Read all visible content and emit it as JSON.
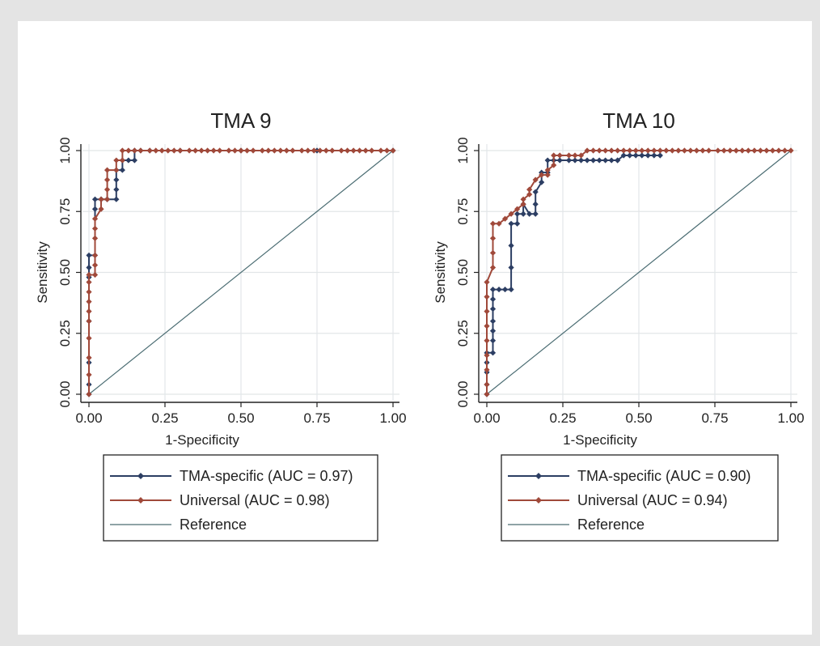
{
  "chart_data": [
    {
      "type": "line",
      "title": "TMA 9",
      "xlabel": "1-Specificity",
      "ylabel": "Sensitivity",
      "xlim": [
        0,
        1
      ],
      "ylim": [
        0,
        1
      ],
      "xticks": [
        "0.00",
        "0.25",
        "0.50",
        "0.75",
        "1.00"
      ],
      "yticks": [
        "0.00",
        "0.25",
        "0.50",
        "0.75",
        "1.00"
      ],
      "grid": true,
      "legend_position": "bottom",
      "series": [
        {
          "name": "TMA-specific (AUC = 0.97)",
          "color": "#2c3e63",
          "marker": "diamond",
          "x": [
            0,
            0,
            0,
            0,
            0,
            0,
            0,
            0.02,
            0.02,
            0.02,
            0.04,
            0.04,
            0.06,
            0.06,
            0.09,
            0.09,
            0.09,
            0.09,
            0.11,
            0.11,
            0.13,
            0.15,
            0.15,
            0.17,
            0.2,
            0.3,
            0.5,
            0.75,
            1.0
          ],
          "y": [
            0,
            0.04,
            0.13,
            0.3,
            0.48,
            0.52,
            0.57,
            0.57,
            0.76,
            0.8,
            0.8,
            0.8,
            0.8,
            0.8,
            0.8,
            0.84,
            0.88,
            0.92,
            0.92,
            0.96,
            0.96,
            0.96,
            1.0,
            1.0,
            1.0,
            1.0,
            1.0,
            1.0,
            1.0
          ]
        },
        {
          "name": "Universal (AUC = 0.98)",
          "color": "#a0493a",
          "marker": "diamond",
          "x": [
            0,
            0,
            0,
            0,
            0,
            0,
            0,
            0,
            0,
            0,
            0.02,
            0.02,
            0.02,
            0.02,
            0.02,
            0.02,
            0.04,
            0.04,
            0.06,
            0.06,
            0.06,
            0.06,
            0.09,
            0.09,
            0.11,
            0.11,
            0.13,
            0.15,
            0.17,
            0.2,
            0.22,
            0.24,
            0.26,
            0.28,
            0.3,
            0.33,
            0.35,
            0.37,
            0.39,
            0.41,
            0.43,
            0.46,
            0.48,
            0.5,
            0.52,
            0.54,
            0.57,
            0.59,
            0.61,
            0.63,
            0.65,
            0.67,
            0.7,
            0.72,
            0.74,
            0.76,
            0.78,
            0.8,
            0.83,
            0.85,
            0.87,
            0.89,
            0.91,
            0.93,
            0.96,
            0.98,
            1.0
          ],
          "y": [
            0,
            0.08,
            0.15,
            0.23,
            0.3,
            0.34,
            0.38,
            0.42,
            0.46,
            0.49,
            0.49,
            0.53,
            0.57,
            0.64,
            0.68,
            0.72,
            0.76,
            0.8,
            0.8,
            0.84,
            0.88,
            0.92,
            0.92,
            0.96,
            0.96,
            1.0,
            1.0,
            1.0,
            1.0,
            1.0,
            1.0,
            1.0,
            1.0,
            1.0,
            1.0,
            1.0,
            1.0,
            1.0,
            1.0,
            1.0,
            1.0,
            1.0,
            1.0,
            1.0,
            1.0,
            1.0,
            1.0,
            1.0,
            1.0,
            1.0,
            1.0,
            1.0,
            1.0,
            1.0,
            1.0,
            1.0,
            1.0,
            1.0,
            1.0,
            1.0,
            1.0,
            1.0,
            1.0,
            1.0,
            1.0,
            1.0,
            1.0
          ]
        },
        {
          "name": "Reference",
          "color": "#4a6c72",
          "marker": "none",
          "x": [
            0,
            1
          ],
          "y": [
            0,
            1
          ]
        }
      ]
    },
    {
      "type": "line",
      "title": "TMA 10",
      "xlabel": "1-Specificity",
      "ylabel": "Sensitivity",
      "xlim": [
        0,
        1
      ],
      "ylim": [
        0,
        1
      ],
      "xticks": [
        "0.00",
        "0.25",
        "0.50",
        "0.75",
        "1.00"
      ],
      "yticks": [
        "0.00",
        "0.25",
        "0.50",
        "0.75",
        "1.00"
      ],
      "grid": true,
      "legend_position": "bottom",
      "series": [
        {
          "name": "TMA-specific (AUC = 0.90)",
          "color": "#2c3e63",
          "marker": "diamond",
          "x": [
            0,
            0,
            0,
            0,
            0,
            0.02,
            0.02,
            0.02,
            0.02,
            0.02,
            0.02,
            0.02,
            0.04,
            0.06,
            0.08,
            0.08,
            0.08,
            0.08,
            0.1,
            0.1,
            0.12,
            0.12,
            0.14,
            0.16,
            0.16,
            0.16,
            0.18,
            0.18,
            0.2,
            0.2,
            0.22,
            0.24,
            0.27,
            0.29,
            0.31,
            0.33,
            0.35,
            0.37,
            0.39,
            0.41,
            0.43,
            0.43,
            0.45,
            0.47,
            0.49,
            0.51,
            0.53,
            0.55,
            0.57
          ],
          "y": [
            0,
            0.04,
            0.09,
            0.13,
            0.17,
            0.17,
            0.22,
            0.26,
            0.3,
            0.35,
            0.39,
            0.43,
            0.43,
            0.43,
            0.43,
            0.52,
            0.61,
            0.7,
            0.7,
            0.74,
            0.74,
            0.78,
            0.74,
            0.74,
            0.78,
            0.83,
            0.87,
            0.91,
            0.91,
            0.96,
            0.96,
            0.96,
            0.96,
            0.96,
            0.96,
            0.96,
            0.96,
            0.96,
            0.96,
            0.96,
            0.96,
            0.96,
            0.98,
            0.98,
            0.98,
            0.98,
            0.98,
            0.98,
            0.98
          ]
        },
        {
          "name": "Universal (AUC = 0.94)",
          "color": "#a0493a",
          "marker": "diamond",
          "x": [
            0,
            0,
            0,
            0,
            0,
            0,
            0,
            0,
            0,
            0.02,
            0.02,
            0.02,
            0.02,
            0.04,
            0.06,
            0.08,
            0.1,
            0.12,
            0.12,
            0.14,
            0.14,
            0.16,
            0.18,
            0.2,
            0.2,
            0.22,
            0.22,
            0.24,
            0.27,
            0.29,
            0.31,
            0.33,
            0.35,
            0.37,
            0.39,
            0.41,
            0.43,
            0.45,
            0.47,
            0.49,
            0.51,
            0.53,
            0.55,
            0.57,
            0.59,
            0.61,
            0.63,
            0.65,
            0.67,
            0.69,
            0.71,
            0.73,
            0.76,
            0.78,
            0.8,
            0.82,
            0.84,
            0.86,
            0.88,
            0.9,
            0.92,
            0.94,
            0.96,
            0.98,
            1.0
          ],
          "y": [
            0,
            0.04,
            0.1,
            0.16,
            0.22,
            0.28,
            0.34,
            0.4,
            0.46,
            0.52,
            0.58,
            0.64,
            0.7,
            0.7,
            0.72,
            0.74,
            0.76,
            0.78,
            0.8,
            0.82,
            0.84,
            0.88,
            0.9,
            0.9,
            0.92,
            0.94,
            0.98,
            0.98,
            0.98,
            0.98,
            0.98,
            1.0,
            1.0,
            1.0,
            1.0,
            1.0,
            1.0,
            1.0,
            1.0,
            1.0,
            1.0,
            1.0,
            1.0,
            1.0,
            1.0,
            1.0,
            1.0,
            1.0,
            1.0,
            1.0,
            1.0,
            1.0,
            1.0,
            1.0,
            1.0,
            1.0,
            1.0,
            1.0,
            1.0,
            1.0,
            1.0,
            1.0,
            1.0,
            1.0,
            1.0
          ]
        },
        {
          "name": "Reference",
          "color": "#4a6c72",
          "marker": "none",
          "x": [
            0,
            1
          ],
          "y": [
            0,
            1
          ]
        }
      ]
    }
  ]
}
